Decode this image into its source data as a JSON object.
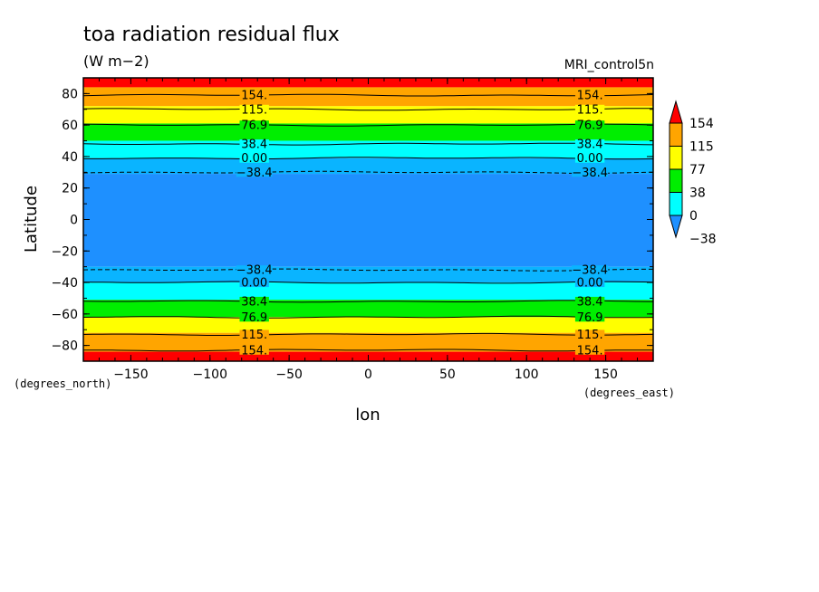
{
  "chart_data": {
    "type": "heatmap",
    "title": "toa radiation residual flux",
    "units": "(W m−2)",
    "dataset": "MRI_control5n",
    "xlabel": "lon",
    "ylabel": "Latitude",
    "x_units_label": "(degrees_east)",
    "y_units_label": "(degrees_north)",
    "xlim": [
      -180,
      180
    ],
    "ylim": [
      -90,
      90
    ],
    "x_ticks": [
      -150,
      -100,
      -50,
      0,
      50,
      100,
      150
    ],
    "y_ticks": [
      80,
      60,
      40,
      20,
      0,
      -20,
      -40,
      -60,
      -80
    ],
    "colorbar": {
      "levels": [
        -38,
        0,
        38,
        77,
        115,
        154
      ],
      "tick_labels": [
        "154",
        "115",
        "77",
        "38",
        "0",
        "−38"
      ],
      "colors": [
        "#1e90ff",
        "#00ffff",
        "#00ee00",
        "#ffff00",
        "#ffa500",
        "#ff0000"
      ]
    },
    "bands": [
      {
        "lat_from": 90,
        "lat_to": 84,
        "color": "#ff0000"
      },
      {
        "lat_from": 84,
        "lat_to": 72,
        "color": "#ffa500"
      },
      {
        "lat_from": 72,
        "lat_to": 61,
        "color": "#ffff00"
      },
      {
        "lat_from": 61,
        "lat_to": 50,
        "color": "#00ee00"
      },
      {
        "lat_from": 50,
        "lat_to": 39,
        "color": "#00ffff"
      },
      {
        "lat_from": 39,
        "lat_to": 29,
        "color": "#0ab4ff"
      },
      {
        "lat_from": 29,
        "lat_to": -30,
        "color": "#1e90ff"
      },
      {
        "lat_from": -30,
        "lat_to": -40,
        "color": "#0ab4ff"
      },
      {
        "lat_from": -40,
        "lat_to": -51,
        "color": "#00ffff"
      },
      {
        "lat_from": -51,
        "lat_to": -62,
        "color": "#00ee00"
      },
      {
        "lat_from": -62,
        "lat_to": -72,
        "color": "#ffff00"
      },
      {
        "lat_from": -72,
        "lat_to": -84,
        "color": "#ffa500"
      },
      {
        "lat_from": -84,
        "lat_to": -90,
        "color": "#ff0000"
      }
    ],
    "contours": [
      {
        "lat": 79,
        "label": "154."
      },
      {
        "lat": 70,
        "label": "115."
      },
      {
        "lat": 60,
        "label": "76.9"
      },
      {
        "lat": 48,
        "label": "38.4"
      },
      {
        "lat": 39,
        "label": "0.00"
      },
      {
        "lat": 30,
        "label": "−38.4",
        "dashed": true
      },
      {
        "lat": -32,
        "label": "−38.4",
        "dashed": true
      },
      {
        "lat": -40,
        "label": "0.00"
      },
      {
        "lat": -52,
        "label": "38.4"
      },
      {
        "lat": -62,
        "label": "76.9"
      },
      {
        "lat": -73,
        "label": "115."
      },
      {
        "lat": -83,
        "label": "154."
      }
    ],
    "contour_label_lons": [
      -72,
      140
    ]
  }
}
